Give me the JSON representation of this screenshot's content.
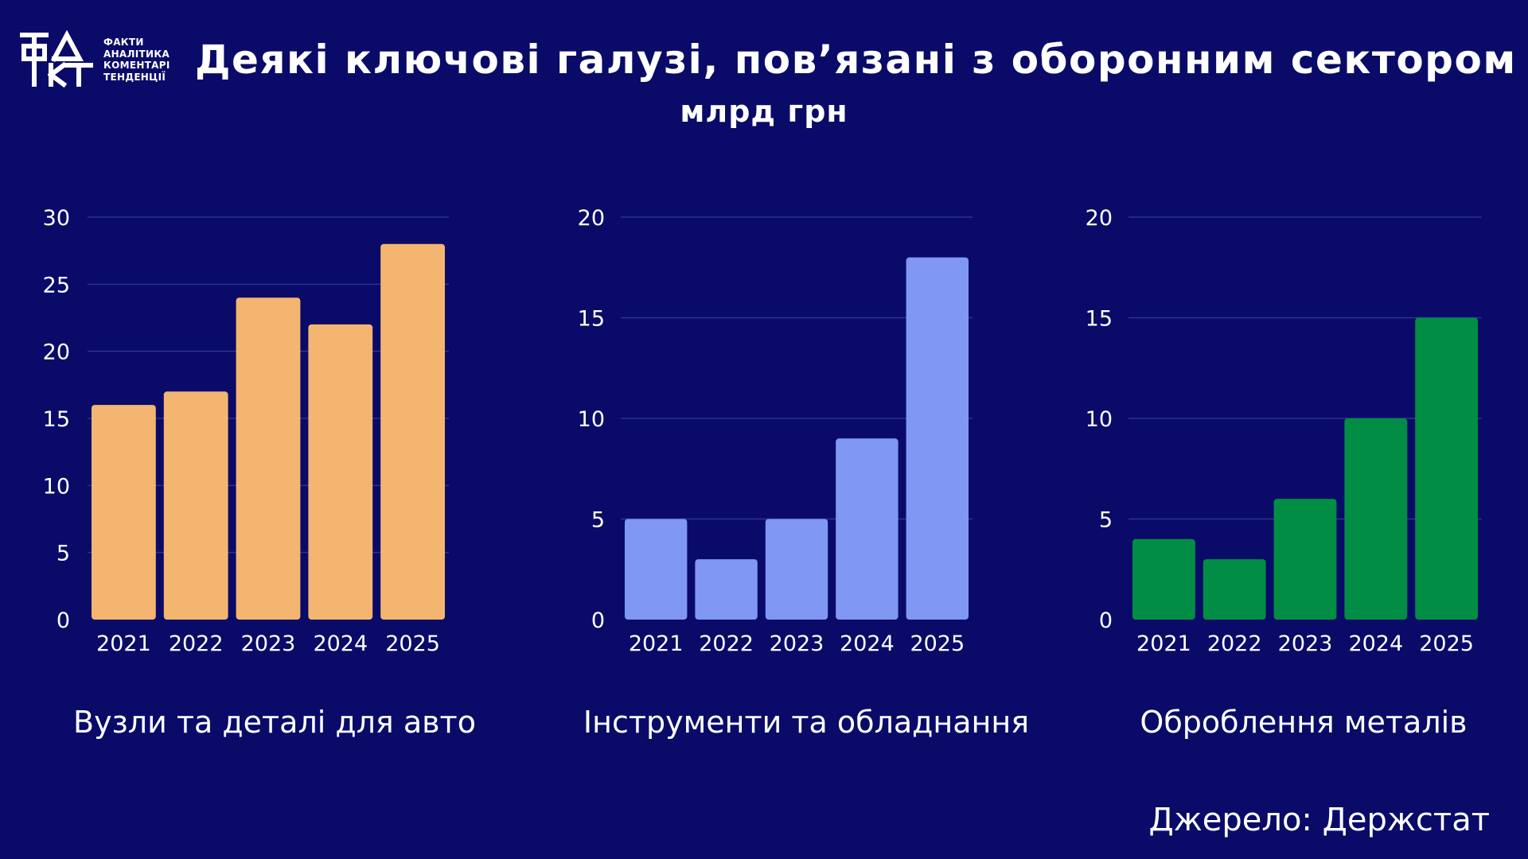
{
  "header": {
    "logo_lines": [
      "ФАКТИ",
      "АНАЛІТИКА",
      "КОМЕНТАРІ",
      "ТЕНДЕНЦІЇ"
    ],
    "title": "Деякі ключові галузі, пов’язані з оборонним сектором",
    "subtitle": "млрд грн"
  },
  "footer": {
    "source": "Джерело: Держстат"
  },
  "chart_data": [
    {
      "type": "bar",
      "title": "Вузли та деталі для авто",
      "categories": [
        "2021",
        "2022",
        "2023",
        "2024",
        "2025"
      ],
      "values": [
        16,
        17,
        24,
        22,
        28
      ],
      "ylim": [
        0,
        30
      ],
      "yticks": [
        0,
        5,
        10,
        15,
        20,
        25,
        30
      ],
      "color": "#f3b570",
      "grid": true
    },
    {
      "type": "bar",
      "title": "Інструменти та обладнання",
      "categories": [
        "2021",
        "2022",
        "2023",
        "2024",
        "2025"
      ],
      "values": [
        5,
        3,
        5,
        9,
        18
      ],
      "ylim": [
        0,
        20
      ],
      "yticks": [
        0,
        5,
        10,
        15,
        20
      ],
      "color": "#8097f4",
      "grid": true
    },
    {
      "type": "bar",
      "title": "Оброблення металів",
      "categories": [
        "2021",
        "2022",
        "2023",
        "2024",
        "2025"
      ],
      "values": [
        4,
        3,
        6,
        10,
        15
      ],
      "ylim": [
        0,
        20
      ],
      "yticks": [
        0,
        5,
        10,
        15,
        20
      ],
      "color": "#018e44",
      "grid": true
    }
  ]
}
